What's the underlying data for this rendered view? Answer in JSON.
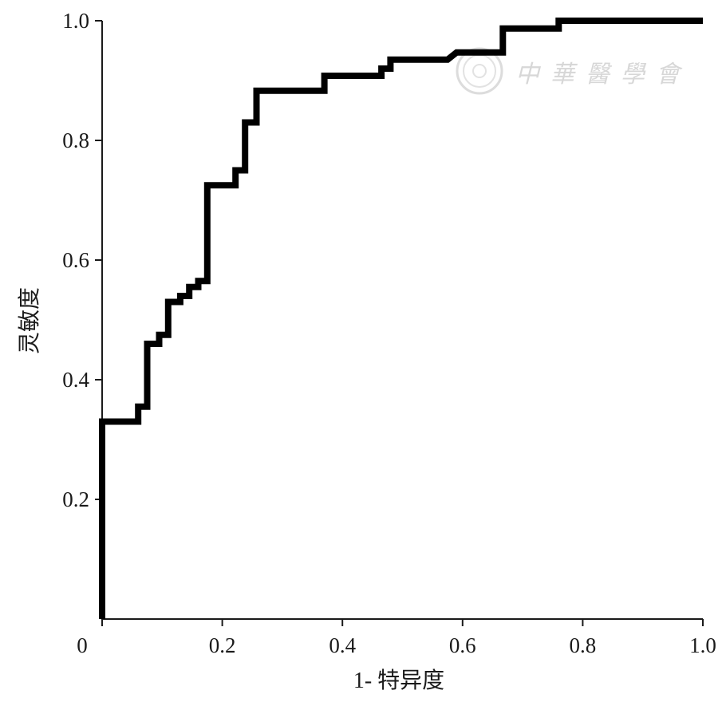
{
  "chart_data": {
    "type": "line",
    "title": "",
    "xlabel": "1- 特异度",
    "ylabel": "灵敏度",
    "xlim": [
      0,
      1.0
    ],
    "ylim": [
      0,
      1.0
    ],
    "x_ticks": [
      {
        "value": 0,
        "label": "0"
      },
      {
        "value": 0.2,
        "label": "0.2"
      },
      {
        "value": 0.4,
        "label": "0.4"
      },
      {
        "value": 0.6,
        "label": "0.6"
      },
      {
        "value": 0.8,
        "label": "0.8"
      },
      {
        "value": 1.0,
        "label": "1.0"
      }
    ],
    "y_ticks": [
      {
        "value": 0.2,
        "label": "0.2"
      },
      {
        "value": 0.4,
        "label": "0.4"
      },
      {
        "value": 0.6,
        "label": "0.6"
      },
      {
        "value": 0.8,
        "label": "0.8"
      },
      {
        "value": 1.0,
        "label": "1.0"
      }
    ],
    "grid": false,
    "legend": "none",
    "series": [
      {
        "color": "#000000",
        "step": true,
        "points": [
          [
            0.0,
            0.0
          ],
          [
            0.0,
            0.33
          ],
          [
            0.06,
            0.33
          ],
          [
            0.06,
            0.355
          ],
          [
            0.075,
            0.355
          ],
          [
            0.075,
            0.46
          ],
          [
            0.095,
            0.46
          ],
          [
            0.095,
            0.475
          ],
          [
            0.11,
            0.475
          ],
          [
            0.11,
            0.53
          ],
          [
            0.13,
            0.53
          ],
          [
            0.13,
            0.54
          ],
          [
            0.145,
            0.54
          ],
          [
            0.145,
            0.555
          ],
          [
            0.16,
            0.555
          ],
          [
            0.16,
            0.565
          ],
          [
            0.175,
            0.565
          ],
          [
            0.175,
            0.725
          ],
          [
            0.222,
            0.725
          ],
          [
            0.222,
            0.75
          ],
          [
            0.238,
            0.75
          ],
          [
            0.238,
            0.83
          ],
          [
            0.257,
            0.83
          ],
          [
            0.257,
            0.883
          ],
          [
            0.37,
            0.883
          ],
          [
            0.37,
            0.908
          ],
          [
            0.465,
            0.908
          ],
          [
            0.465,
            0.92
          ],
          [
            0.48,
            0.92
          ],
          [
            0.48,
            0.935
          ],
          [
            0.575,
            0.935
          ],
          [
            0.59,
            0.947
          ],
          [
            0.667,
            0.947
          ],
          [
            0.667,
            0.987
          ],
          [
            0.76,
            0.987
          ],
          [
            0.76,
            1.0
          ],
          [
            1.0,
            1.0
          ]
        ]
      }
    ]
  },
  "watermark": {
    "text": "中華醫學會",
    "color": "#d7d7d7"
  }
}
